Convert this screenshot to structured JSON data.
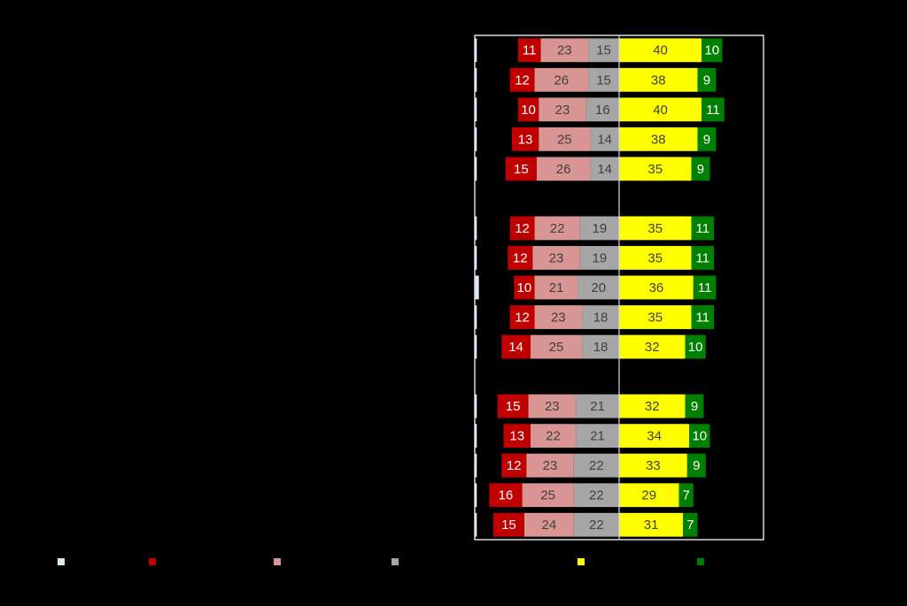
{
  "chart_data": {
    "type": "diverging-bar",
    "categories": [
      null,
      null,
      null,
      null,
      null,
      null,
      null,
      null,
      null,
      null,
      null,
      null,
      null,
      null,
      null,
      null,
      null
    ],
    "series": [
      {
        "color": "#dde6f0",
        "side": "edge",
        "values": [
          1,
          1,
          1,
          1,
          1,
          null,
          1,
          1,
          2,
          1,
          1,
          null,
          1,
          1,
          1,
          1,
          1
        ]
      },
      {
        "color": "#c00000",
        "side": "negative",
        "values": [
          11,
          12,
          10,
          13,
          15,
          null,
          12,
          12,
          10,
          12,
          14,
          null,
          15,
          13,
          12,
          16,
          15
        ]
      },
      {
        "color": "#d99594",
        "side": "negative",
        "values": [
          23,
          26,
          23,
          25,
          26,
          null,
          22,
          23,
          21,
          23,
          25,
          null,
          23,
          22,
          23,
          25,
          24
        ]
      },
      {
        "color": "#a6a6a6",
        "side": "negative",
        "values": [
          15,
          15,
          16,
          14,
          14,
          null,
          19,
          19,
          20,
          18,
          18,
          null,
          21,
          21,
          22,
          22,
          22
        ]
      },
      {
        "color": "#ffff00",
        "side": "positive",
        "values": [
          40,
          38,
          40,
          38,
          35,
          null,
          35,
          35,
          36,
          35,
          32,
          null,
          32,
          34,
          33,
          29,
          31
        ]
      },
      {
        "color": "#008000",
        "side": "positive",
        "values": [
          10,
          9,
          11,
          9,
          9,
          null,
          11,
          11,
          11,
          11,
          10,
          null,
          9,
          10,
          9,
          7,
          7
        ]
      }
    ],
    "xlim": [
      -70,
      70
    ]
  }
}
